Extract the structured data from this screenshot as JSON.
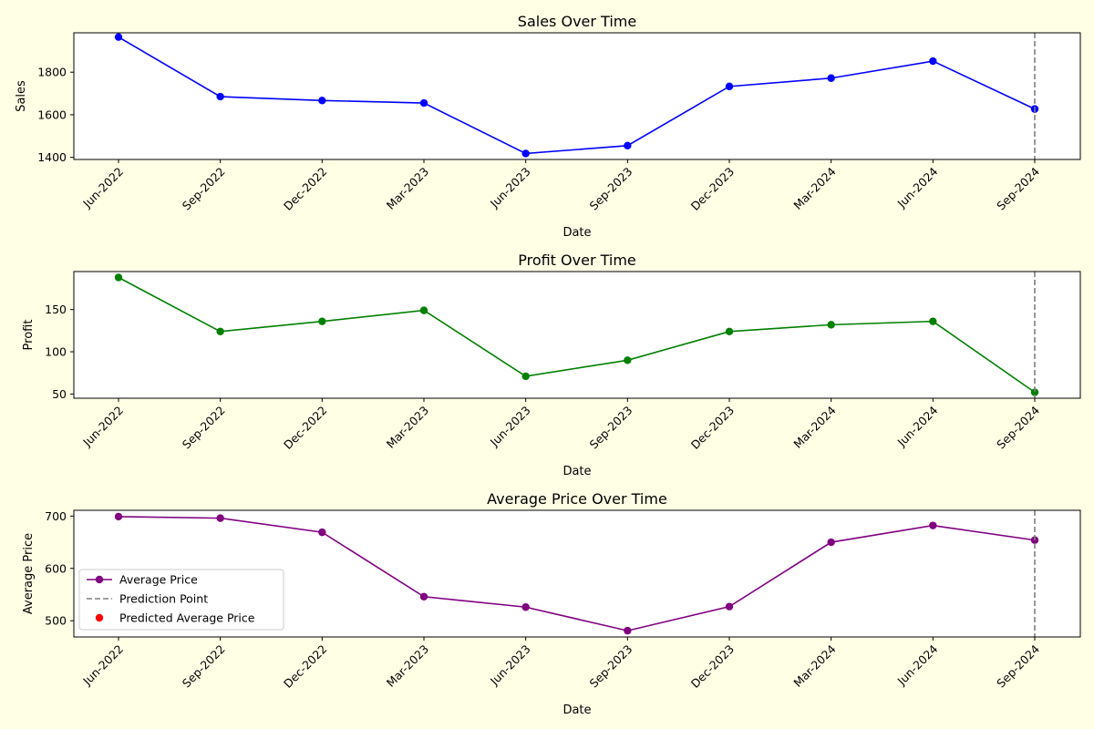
{
  "chart_data": [
    {
      "type": "line",
      "title": "Sales Over Time",
      "xlabel": "Date",
      "ylabel": "Sales",
      "x": [
        "Jun-2022",
        "Sep-2022",
        "Dec-2022",
        "Mar-2023",
        "Jun-2023",
        "Sep-2023",
        "Dec-2023",
        "Mar-2024",
        "Jun-2024",
        "Sep-2024"
      ],
      "series": [
        {
          "values": [
            1965,
            1685,
            1667,
            1655,
            1418,
            1455,
            1733,
            1772,
            1852,
            1627
          ],
          "color": "#0000ff"
        }
      ],
      "ylim": [
        1390,
        1985
      ],
      "yticks": [
        1400,
        1600,
        1800
      ],
      "prediction_index": 9,
      "grid": false
    },
    {
      "type": "line",
      "title": "Profit Over Time",
      "xlabel": "Date",
      "ylabel": "Profit",
      "x": [
        "Jun-2022",
        "Sep-2022",
        "Dec-2022",
        "Mar-2023",
        "Jun-2023",
        "Sep-2023",
        "Dec-2023",
        "Mar-2024",
        "Jun-2024",
        "Sep-2024"
      ],
      "series": [
        {
          "values": [
            188,
            124,
            136,
            149,
            71,
            90,
            124,
            132,
            136,
            52
          ],
          "color": "#008000"
        }
      ],
      "ylim": [
        45,
        195
      ],
      "yticks": [
        50,
        100,
        150
      ],
      "prediction_index": 9,
      "grid": false
    },
    {
      "type": "line",
      "title": "Average Price Over Time",
      "xlabel": "Date",
      "ylabel": "Average Price",
      "x": [
        "Jun-2022",
        "Sep-2022",
        "Dec-2022",
        "Mar-2023",
        "Jun-2023",
        "Sep-2023",
        "Dec-2023",
        "Mar-2024",
        "Jun-2024",
        "Sep-2024"
      ],
      "series": [
        {
          "name": "Average Price",
          "values": [
            699,
            696,
            669,
            546,
            526,
            481,
            527,
            650,
            682,
            654
          ],
          "color": "#800080"
        }
      ],
      "ylim": [
        469,
        711
      ],
      "yticks": [
        500,
        600,
        700
      ],
      "prediction_index": 9,
      "grid": false,
      "legend": {
        "placement": "lower-left",
        "entries": [
          {
            "label": "Average Price",
            "kind": "line-marker",
            "color": "#800080"
          },
          {
            "label": "Prediction Point",
            "kind": "dashed-line",
            "color": "#808080"
          },
          {
            "label": "Predicted Average Price",
            "kind": "marker",
            "color": "#ff0000"
          }
        ]
      }
    }
  ]
}
